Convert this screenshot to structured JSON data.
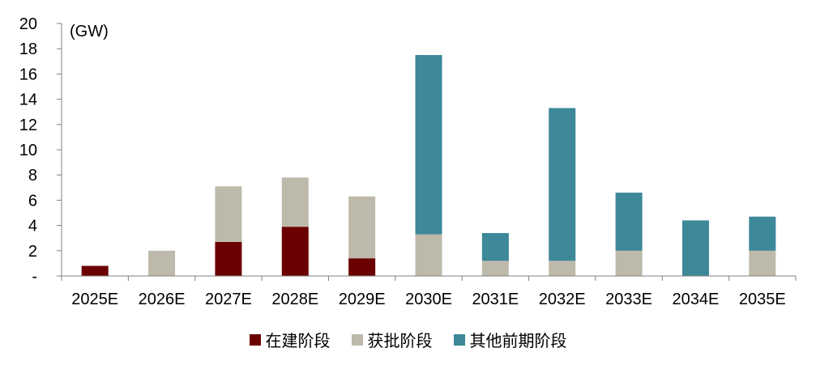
{
  "chart_data": {
    "type": "bar",
    "stacked": true,
    "unit_label": "(GW)",
    "categories": [
      "2025E",
      "2026E",
      "2027E",
      "2028E",
      "2029E",
      "2030E",
      "2031E",
      "2032E",
      "2033E",
      "2034E",
      "2035E"
    ],
    "series": [
      {
        "name": "在建阶段",
        "color": "#6B0000",
        "values": [
          0.8,
          0,
          2.7,
          3.9,
          1.4,
          0,
          0,
          0,
          0,
          0,
          0
        ]
      },
      {
        "name": "获批阶段",
        "color": "#BEBAAB",
        "values": [
          0,
          2.0,
          4.4,
          3.9,
          4.9,
          3.3,
          1.2,
          1.2,
          2.0,
          0,
          2.0
        ]
      },
      {
        "name": "其他前期阶段",
        "color": "#3D8899",
        "values": [
          0,
          0,
          0,
          0,
          0,
          14.2,
          2.2,
          12.1,
          4.6,
          4.4,
          2.7
        ]
      }
    ],
    "ylim": [
      0,
      20
    ],
    "yticks": [
      0,
      2,
      4,
      6,
      8,
      10,
      12,
      14,
      16,
      18,
      20
    ],
    "ytick_labels": [
      "-",
      "2",
      "4",
      "6",
      "8",
      "10",
      "12",
      "14",
      "16",
      "18",
      "20"
    ],
    "legend_position": "bottom"
  }
}
